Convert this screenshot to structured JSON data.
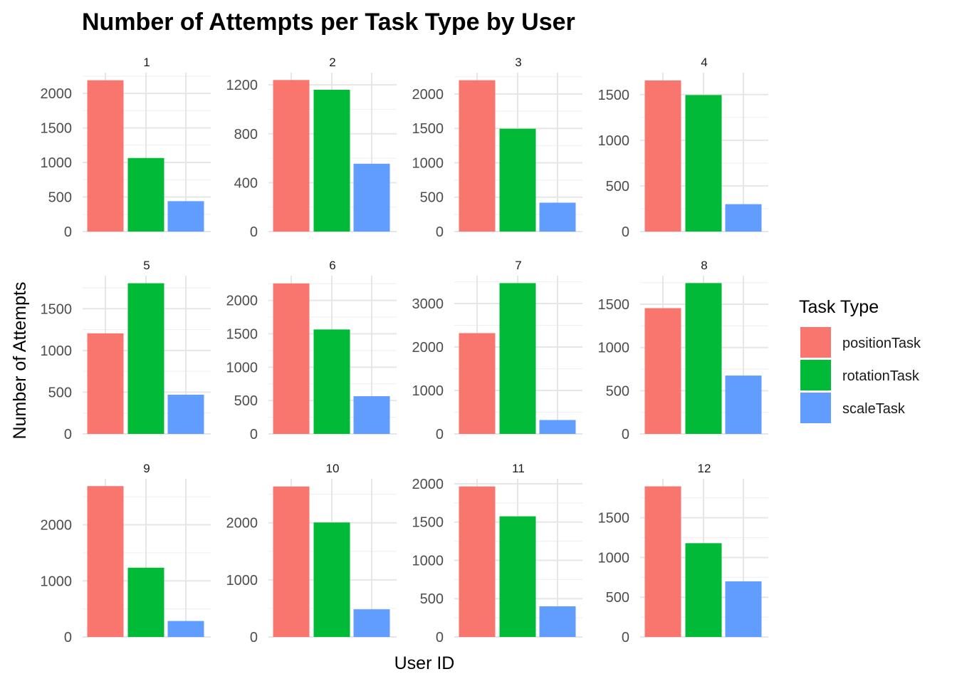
{
  "chart_data": {
    "type": "bar",
    "title": "Number of Attempts per Task Type by User",
    "xlabel": "User ID",
    "ylabel": "Number of Attempts",
    "legend_title": "Task Type",
    "legend_placement": "right",
    "grid": true,
    "categories": [
      "positionTask",
      "rotationTask",
      "scaleTask"
    ],
    "colors": {
      "positionTask": "#F8766D",
      "rotationTask": "#00BA38",
      "scaleTask": "#619CFF"
    },
    "facets": [
      {
        "label": "1",
        "values": [
          2190,
          1065,
          440
        ],
        "yticks": [
          0,
          500,
          1000,
          1500,
          2000
        ],
        "ylim": [
          0,
          2300
        ]
      },
      {
        "label": "2",
        "values": [
          1240,
          1160,
          555
        ],
        "yticks": [
          0,
          400,
          800,
          1200
        ],
        "ylim": [
          0,
          1300
        ]
      },
      {
        "label": "3",
        "values": [
          2200,
          1495,
          420
        ],
        "yticks": [
          0,
          500,
          1000,
          1500,
          2000
        ],
        "ylim": [
          0,
          2310
        ]
      },
      {
        "label": "4",
        "values": [
          1655,
          1495,
          300
        ],
        "yticks": [
          0,
          500,
          1000,
          1500
        ],
        "ylim": [
          0,
          1740
        ]
      },
      {
        "label": "5",
        "values": [
          1205,
          1805,
          470
        ],
        "yticks": [
          0,
          500,
          1000,
          1500
        ],
        "ylim": [
          0,
          1895
        ]
      },
      {
        "label": "6",
        "values": [
          2255,
          1565,
          565
        ],
        "yticks": [
          0,
          500,
          1000,
          1500,
          2000
        ],
        "ylim": [
          0,
          2370
        ]
      },
      {
        "label": "7",
        "values": [
          2320,
          3470,
          320
        ],
        "yticks": [
          0,
          1000,
          2000,
          3000
        ],
        "ylim": [
          0,
          3640
        ]
      },
      {
        "label": "8",
        "values": [
          1455,
          1745,
          675
        ],
        "yticks": [
          0,
          500,
          1000,
          1500
        ],
        "ylim": [
          0,
          1830
        ]
      },
      {
        "label": "9",
        "values": [
          2690,
          1235,
          285
        ],
        "yticks": [
          0,
          1000,
          2000
        ],
        "ylim": [
          0,
          2820
        ]
      },
      {
        "label": "10",
        "values": [
          2635,
          2005,
          485
        ],
        "yticks": [
          0,
          1000,
          2000
        ],
        "ylim": [
          0,
          2770
        ]
      },
      {
        "label": "11",
        "values": [
          1965,
          1575,
          400
        ],
        "yticks": [
          0,
          500,
          1000,
          1500,
          2000
        ],
        "ylim": [
          0,
          2065
        ]
      },
      {
        "label": "12",
        "values": [
          1895,
          1180,
          700
        ],
        "yticks": [
          0,
          500,
          1000,
          1500
        ],
        "ylim": [
          0,
          1990
        ]
      }
    ]
  }
}
